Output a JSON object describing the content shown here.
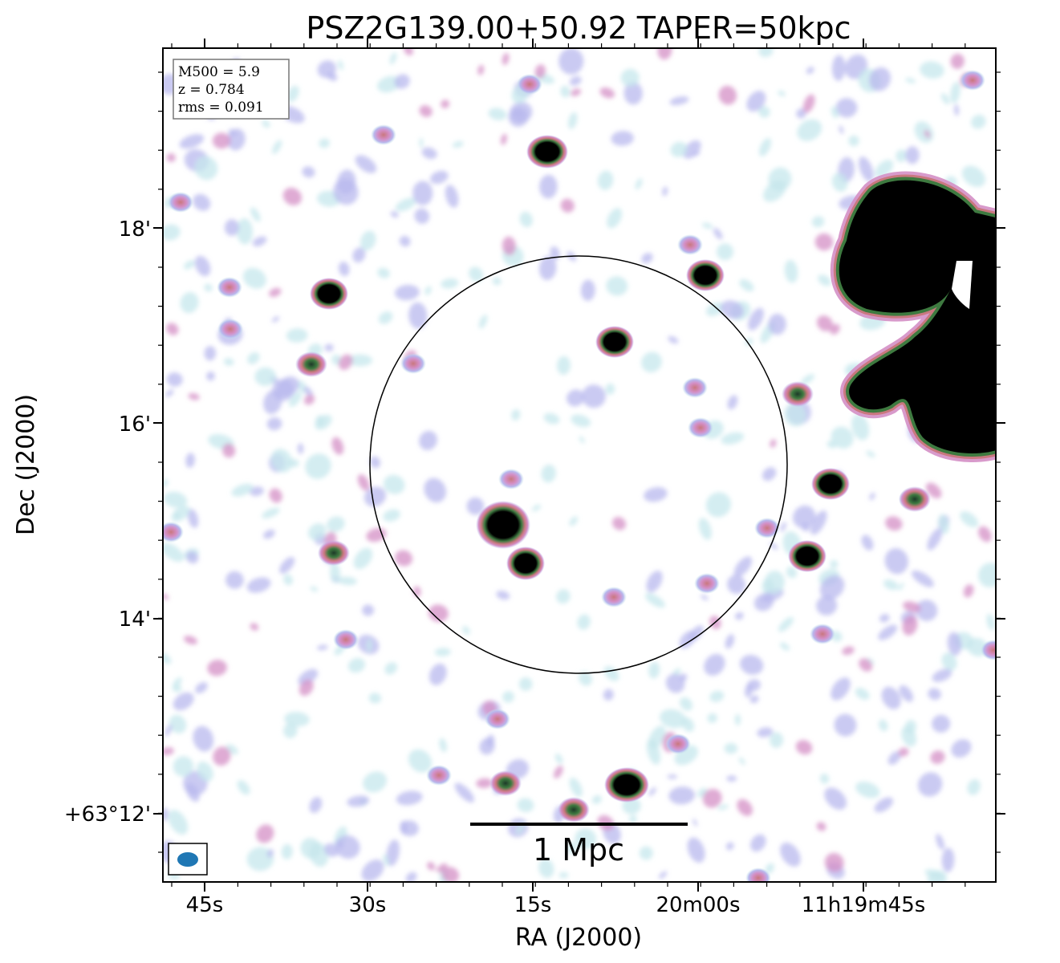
{
  "title": "PSZ2G139.00+50.92 TAPER=50kpc",
  "xlabel": "RA (J2000)",
  "ylabel": "Dec (J2000)",
  "x_ticks": [
    "45s",
    "30s",
    "15s",
    "20m00s",
    "11h19m45s"
  ],
  "y_ticks": [
    "18'",
    "16'",
    "14'",
    "+63°12'"
  ],
  "info_box": {
    "m500": "M500 = 5.9",
    "z": "z = 0.784",
    "rms": "rms = 0.091"
  },
  "scale_bar_label": "1 Mpc",
  "colors": {
    "beam": "#1f77b4",
    "pale": "#c6e7ec",
    "lavender": "#b8b8ee",
    "pink": "#d48fc6",
    "rose": "#c9787f",
    "green": "#3e7a40",
    "black": "#000000"
  }
}
